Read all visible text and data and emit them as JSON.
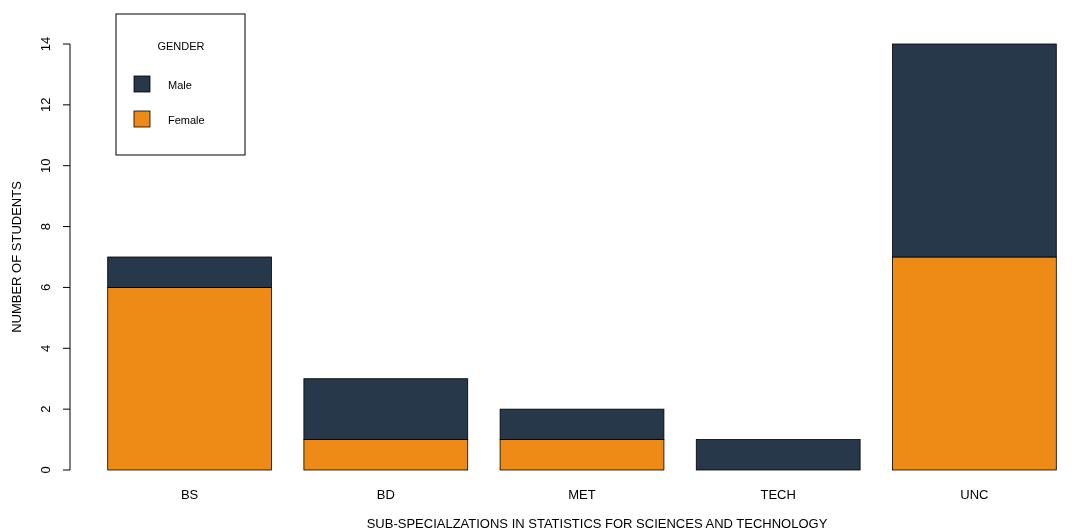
{
  "chart_data": {
    "type": "bar",
    "stacked": true,
    "xlabel": "SUB-SPECIALZATIONS IN STATISTICS FOR SCIENCES AND TECHNOLOGY",
    "ylabel": "NUMBER OF STUDENTS",
    "legend_title": "GENDER",
    "legend": "top left",
    "categories": [
      "BS",
      "BD",
      "MET",
      "TECH",
      "UNC"
    ],
    "series": [
      {
        "name": "Female",
        "color": "#ee8a16",
        "values": [
          6,
          1,
          1,
          0,
          7
        ]
      },
      {
        "name": "Male",
        "color": "#263849",
        "values": [
          1,
          2,
          1,
          1,
          7
        ]
      }
    ],
    "ylim": [
      0,
      14
    ],
    "yticks": [
      0,
      2,
      4,
      6,
      8,
      10,
      12,
      14
    ]
  }
}
